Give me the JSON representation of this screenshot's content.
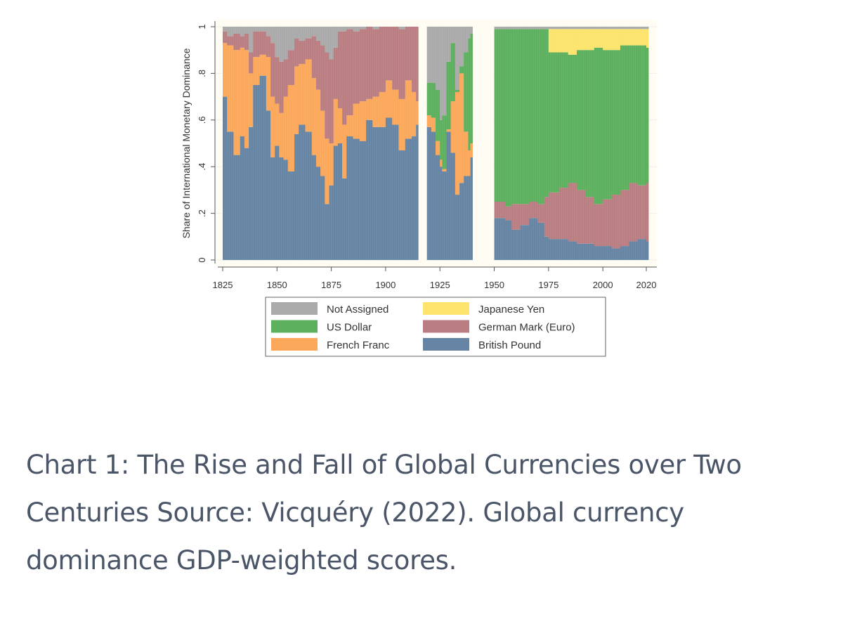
{
  "chart_data": {
    "type": "bar",
    "stacked": true,
    "ylabel": "Share of International Monetary Dominance",
    "xlabel": "",
    "ylim": [
      0,
      1
    ],
    "xlim": [
      1825,
      2020
    ],
    "x_ticks": [
      "1825",
      "1850",
      "1875",
      "1900",
      "1925",
      "1950",
      "1975",
      "2000",
      "2020"
    ],
    "y_ticks": [
      "0",
      ".2",
      ".4",
      ".6",
      ".8",
      "1"
    ],
    "grid": true,
    "legend_position": "bottom",
    "series_order": [
      "British Pound",
      "French Franc",
      "German Mark (Euro)",
      "US Dollar",
      "Japanese Yen",
      "Not Assigned"
    ],
    "legend": [
      {
        "name": "Not Assigned",
        "color": "#aaaaaa"
      },
      {
        "name": "Japanese Yen",
        "color": "#fde46c"
      },
      {
        "name": "US Dollar",
        "color": "#5cb05e"
      },
      {
        "name": "German Mark (Euro)",
        "color": "#ba7e82"
      },
      {
        "name": "French Franc",
        "color": "#fba85b"
      },
      {
        "name": "British Pound",
        "color": "#6685a4"
      }
    ],
    "segments": [
      {
        "years": [
          1825,
          1827,
          1830,
          1833,
          1835,
          1837,
          1839,
          1842,
          1845,
          1847,
          1849,
          1851,
          1853,
          1855,
          1858,
          1860,
          1863,
          1866,
          1868,
          1870,
          1872,
          1874,
          1876,
          1878,
          1880,
          1882,
          1885,
          1888,
          1891,
          1894,
          1897,
          1900,
          1903,
          1906,
          1909,
          1912,
          1914
        ],
        "end_year": 1915,
        "values": {
          "British Pound": [
            0.7,
            0.55,
            0.45,
            0.53,
            0.48,
            0.57,
            0.75,
            0.79,
            0.64,
            0.44,
            0.49,
            0.44,
            0.43,
            0.38,
            0.54,
            0.58,
            0.55,
            0.45,
            0.4,
            0.36,
            0.24,
            0.32,
            0.49,
            0.5,
            0.35,
            0.53,
            0.52,
            0.51,
            0.6,
            0.57,
            0.57,
            0.61,
            0.58,
            0.47,
            0.52,
            0.53,
            0.58
          ],
          "French Franc": [
            0.23,
            0.37,
            0.45,
            0.38,
            0.42,
            0.23,
            0.12,
            0.09,
            0.23,
            0.26,
            0.18,
            0.19,
            0.27,
            0.37,
            0.29,
            0.26,
            0.31,
            0.33,
            0.33,
            0.28,
            0.28,
            0.18,
            0.2,
            0.15,
            0.23,
            0.09,
            0.15,
            0.17,
            0.09,
            0.13,
            0.15,
            0.16,
            0.15,
            0.22,
            0.25,
            0.19,
            0.1
          ],
          "German Mark (Euro)": [
            0.05,
            0.04,
            0.07,
            0.05,
            0.07,
            0.09,
            0.11,
            0.1,
            0.09,
            0.23,
            0.2,
            0.22,
            0.16,
            0.15,
            0.12,
            0.1,
            0.09,
            0.18,
            0.21,
            0.28,
            0.37,
            0.36,
            0.22,
            0.33,
            0.4,
            0.37,
            0.31,
            0.31,
            0.31,
            0.29,
            0.28,
            0.23,
            0.27,
            0.3,
            0.23,
            0.28,
            0.32
          ],
          "US Dollar": [
            0,
            0,
            0,
            0,
            0,
            0,
            0,
            0,
            0,
            0,
            0,
            0,
            0,
            0,
            0,
            0,
            0,
            0,
            0,
            0,
            0,
            0,
            0,
            0,
            0,
            0,
            0,
            0,
            0,
            0,
            0,
            0,
            0,
            0,
            0,
            0,
            0
          ],
          "Japanese Yen": [
            0,
            0,
            0,
            0,
            0,
            0,
            0,
            0,
            0,
            0,
            0,
            0,
            0,
            0,
            0,
            0,
            0,
            0,
            0,
            0,
            0,
            0,
            0,
            0,
            0,
            0,
            0,
            0,
            0,
            0,
            0,
            0,
            0,
            0,
            0,
            0,
            0
          ],
          "Not Assigned": [
            0.02,
            0.04,
            0.03,
            0.04,
            0.03,
            0.11,
            0.02,
            0.02,
            0.04,
            0.07,
            0.13,
            0.15,
            0.14,
            0.1,
            0.05,
            0.06,
            0.05,
            0.04,
            0.06,
            0.08,
            0.11,
            0.14,
            0.09,
            0.02,
            0.02,
            0.01,
            0.02,
            0.01,
            0,
            0.01,
            0,
            0,
            0,
            0.01,
            0,
            0,
            0
          ]
        }
      },
      {
        "years": [
          1919,
          1921,
          1923,
          1925,
          1926,
          1928,
          1930,
          1932,
          1934,
          1936,
          1938,
          1939
        ],
        "end_year": 1940,
        "values": {
          "British Pound": [
            0.57,
            0.55,
            0.45,
            0.4,
            0.38,
            0.55,
            0.46,
            0.28,
            0.33,
            0.36,
            0.36,
            0.44
          ],
          "French Franc": [
            0.05,
            0.06,
            0.06,
            0.03,
            0.01,
            0.01,
            0.22,
            0.44,
            0.47,
            0.19,
            0.11,
            0.06
          ],
          "German Mark (Euro)": [
            0,
            0,
            0,
            0,
            0,
            0,
            0,
            0,
            0,
            0,
            0,
            0
          ],
          "US Dollar": [
            0.14,
            0.15,
            0.22,
            0.17,
            0.23,
            0.29,
            0.25,
            0.01,
            0.03,
            0.34,
            0.48,
            0.47
          ],
          "Japanese Yen": [
            0,
            0,
            0,
            0,
            0,
            0,
            0,
            0,
            0,
            0,
            0,
            0
          ],
          "Not Assigned": [
            0.24,
            0.24,
            0.27,
            0.4,
            0.38,
            0.15,
            0.07,
            0.27,
            0.17,
            0.11,
            0.05,
            0.03
          ]
        }
      },
      {
        "years": [
          1950,
          1955,
          1958,
          1962,
          1966,
          1970,
          1973,
          1975,
          1980,
          1984,
          1988,
          1992,
          1996,
          2000,
          2004,
          2008,
          2012,
          2016,
          2020
        ],
        "end_year": 2020,
        "values": {
          "British Pound": [
            0.18,
            0.17,
            0.13,
            0.15,
            0.18,
            0.16,
            0.1,
            0.09,
            0.09,
            0.08,
            0.07,
            0.07,
            0.06,
            0.06,
            0.05,
            0.06,
            0.08,
            0.09,
            0.08
          ],
          "French Franc": [
            0,
            0,
            0,
            0,
            0,
            0,
            0,
            0,
            0,
            0,
            0,
            0,
            0,
            0,
            0,
            0,
            0,
            0,
            0
          ],
          "German Mark (Euro)": [
            0.07,
            0.06,
            0.11,
            0.09,
            0.07,
            0.08,
            0.17,
            0.2,
            0.22,
            0.25,
            0.23,
            0.2,
            0.18,
            0.2,
            0.23,
            0.24,
            0.25,
            0.23,
            0.25
          ],
          "US Dollar": [
            0.74,
            0.76,
            0.75,
            0.75,
            0.74,
            0.75,
            0.72,
            0.6,
            0.58,
            0.55,
            0.6,
            0.63,
            0.67,
            0.64,
            0.62,
            0.62,
            0.59,
            0.6,
            0.58
          ],
          "Japanese Yen": [
            0,
            0,
            0,
            0,
            0,
            0,
            0,
            0.1,
            0.1,
            0.11,
            0.09,
            0.09,
            0.08,
            0.09,
            0.09,
            0.07,
            0.07,
            0.07,
            0.08
          ],
          "Not Assigned": [
            0.01,
            0.01,
            0.01,
            0.01,
            0.01,
            0.01,
            0.01,
            0.01,
            0.01,
            0.01,
            0.01,
            0.01,
            0.01,
            0.01,
            0.01,
            0.01,
            0.01,
            0.01,
            0.01
          ]
        }
      }
    ]
  },
  "caption": "Chart 1: The Rise and Fall of Global Currencies over Two Centuries Source: Vicquéry (2022). Global currency dominance GDP-weighted scores."
}
